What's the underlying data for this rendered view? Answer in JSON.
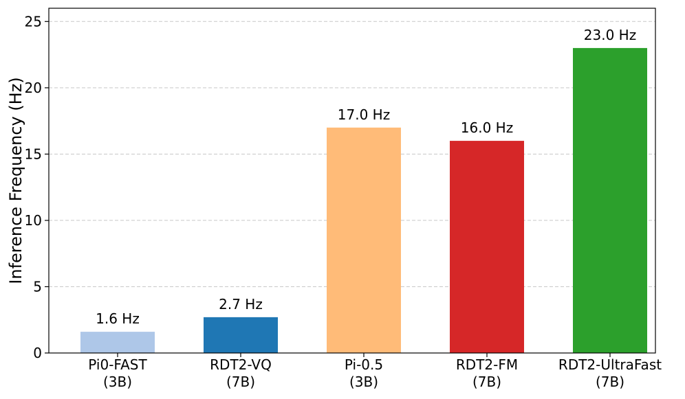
{
  "chart_data": {
    "type": "bar",
    "title": "",
    "xlabel": "",
    "ylabel": "Inference Frequency (Hz)",
    "ylim": [
      0,
      26
    ],
    "yticks": [
      0,
      5,
      10,
      15,
      20,
      25
    ],
    "grid": "y-dashed",
    "categories": [
      {
        "line1": "Pi0-FAST",
        "line2": "(3B)"
      },
      {
        "line1": "RDT2-VQ",
        "line2": "(7B)"
      },
      {
        "line1": "Pi-0.5",
        "line2": "(3B)"
      },
      {
        "line1": "RDT2-FM",
        "line2": "(7B)"
      },
      {
        "line1": "RDT2-UltraFast",
        "line2": "(7B)"
      }
    ],
    "values": [
      1.6,
      2.7,
      17.0,
      16.0,
      23.0
    ],
    "data_labels": [
      "1.6 Hz",
      "2.7 Hz",
      "17.0 Hz",
      "16.0 Hz",
      "23.0 Hz"
    ],
    "colors": [
      "#aec7e8",
      "#1f77b4",
      "#ffbb78",
      "#d62728",
      "#2ca02c"
    ]
  }
}
